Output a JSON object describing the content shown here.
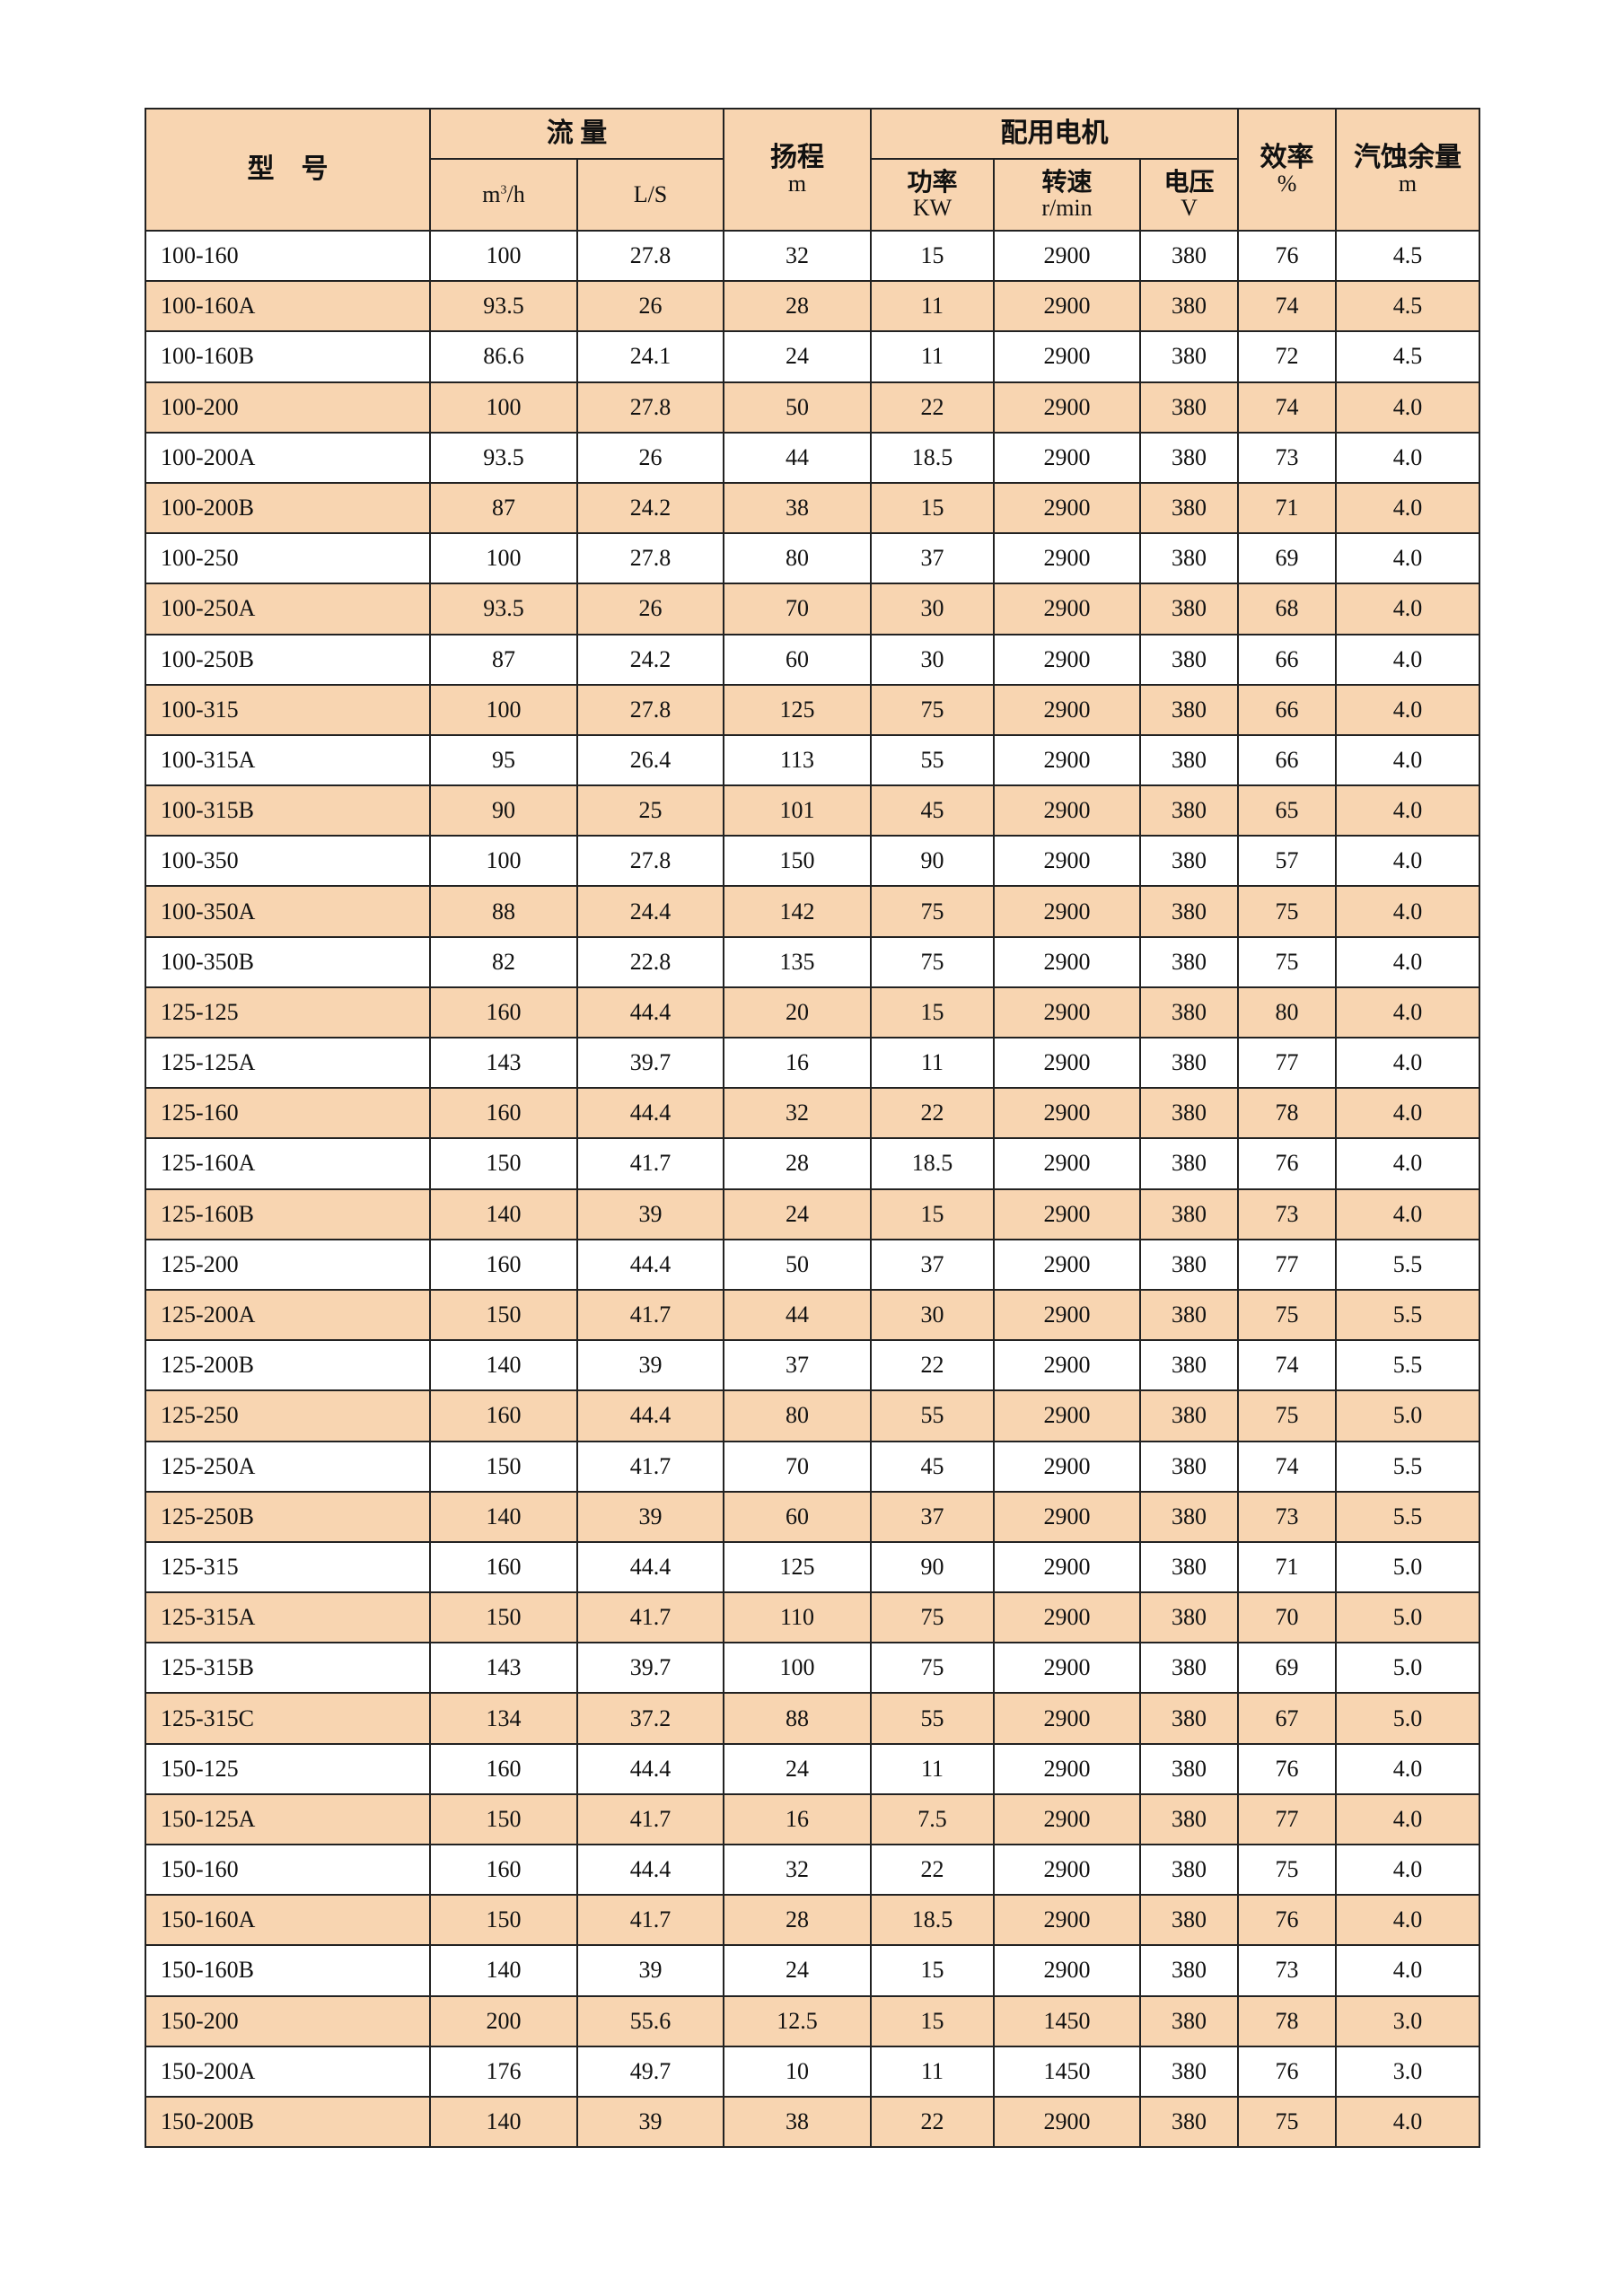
{
  "header": {
    "model": "型　号",
    "flow": "流 量",
    "flow_m3h": "m3/h",
    "flow_ls": "L/S",
    "head": "扬程",
    "head_unit": "m",
    "motor": "配用电机",
    "power": "功率",
    "power_unit": "KW",
    "speed": "转速",
    "speed_unit": "r/min",
    "voltage": "电压",
    "voltage_unit": "V",
    "efficiency": "效率",
    "efficiency_unit": "%",
    "npsh": "汽蚀余量",
    "npsh_unit": "m"
  },
  "row_color": "#f8d5b1",
  "rows": [
    [
      "100-160",
      "100",
      "27.8",
      "32",
      "15",
      "2900",
      "380",
      "76",
      "4.5"
    ],
    [
      "100-160A",
      "93.5",
      "26",
      "28",
      "11",
      "2900",
      "380",
      "74",
      "4.5"
    ],
    [
      "100-160B",
      "86.6",
      "24.1",
      "24",
      "11",
      "2900",
      "380",
      "72",
      "4.5"
    ],
    [
      "100-200",
      "100",
      "27.8",
      "50",
      "22",
      "2900",
      "380",
      "74",
      "4.0"
    ],
    [
      "100-200A",
      "93.5",
      "26",
      "44",
      "18.5",
      "2900",
      "380",
      "73",
      "4.0"
    ],
    [
      "100-200B",
      "87",
      "24.2",
      "38",
      "15",
      "2900",
      "380",
      "71",
      "4.0"
    ],
    [
      "100-250",
      "100",
      "27.8",
      "80",
      "37",
      "2900",
      "380",
      "69",
      "4.0"
    ],
    [
      "100-250A",
      "93.5",
      "26",
      "70",
      "30",
      "2900",
      "380",
      "68",
      "4.0"
    ],
    [
      "100-250B",
      "87",
      "24.2",
      "60",
      "30",
      "2900",
      "380",
      "66",
      "4.0"
    ],
    [
      "100-315",
      "100",
      "27.8",
      "125",
      "75",
      "2900",
      "380",
      "66",
      "4.0"
    ],
    [
      "100-315A",
      "95",
      "26.4",
      "113",
      "55",
      "2900",
      "380",
      "66",
      "4.0"
    ],
    [
      "100-315B",
      "90",
      "25",
      "101",
      "45",
      "2900",
      "380",
      "65",
      "4.0"
    ],
    [
      "100-350",
      "100",
      "27.8",
      "150",
      "90",
      "2900",
      "380",
      "57",
      "4.0"
    ],
    [
      "100-350A",
      "88",
      "24.4",
      "142",
      "75",
      "2900",
      "380",
      "75",
      "4.0"
    ],
    [
      "100-350B",
      "82",
      "22.8",
      "135",
      "75",
      "2900",
      "380",
      "75",
      "4.0"
    ],
    [
      "125-125",
      "160",
      "44.4",
      "20",
      "15",
      "2900",
      "380",
      "80",
      "4.0"
    ],
    [
      "125-125A",
      "143",
      "39.7",
      "16",
      "11",
      "2900",
      "380",
      "77",
      "4.0"
    ],
    [
      "125-160",
      "160",
      "44.4",
      "32",
      "22",
      "2900",
      "380",
      "78",
      "4.0"
    ],
    [
      "125-160A",
      "150",
      "41.7",
      "28",
      "18.5",
      "2900",
      "380",
      "76",
      "4.0"
    ],
    [
      "125-160B",
      "140",
      "39",
      "24",
      "15",
      "2900",
      "380",
      "73",
      "4.0"
    ],
    [
      "125-200",
      "160",
      "44.4",
      "50",
      "37",
      "2900",
      "380",
      "77",
      "5.5"
    ],
    [
      "125-200A",
      "150",
      "41.7",
      "44",
      "30",
      "2900",
      "380",
      "75",
      "5.5"
    ],
    [
      "125-200B",
      "140",
      "39",
      "37",
      "22",
      "2900",
      "380",
      "74",
      "5.5"
    ],
    [
      "125-250",
      "160",
      "44.4",
      "80",
      "55",
      "2900",
      "380",
      "75",
      "5.0"
    ],
    [
      "125-250A",
      "150",
      "41.7",
      "70",
      "45",
      "2900",
      "380",
      "74",
      "5.5"
    ],
    [
      "125-250B",
      "140",
      "39",
      "60",
      "37",
      "2900",
      "380",
      "73",
      "5.5"
    ],
    [
      "125-315",
      "160",
      "44.4",
      "125",
      "90",
      "2900",
      "380",
      "71",
      "5.0"
    ],
    [
      "125-315A",
      "150",
      "41.7",
      "110",
      "75",
      "2900",
      "380",
      "70",
      "5.0"
    ],
    [
      "125-315B",
      "143",
      "39.7",
      "100",
      "75",
      "2900",
      "380",
      "69",
      "5.0"
    ],
    [
      "125-315C",
      "134",
      "37.2",
      "88",
      "55",
      "2900",
      "380",
      "67",
      "5.0"
    ],
    [
      "150-125",
      "160",
      "44.4",
      "24",
      "11",
      "2900",
      "380",
      "76",
      "4.0"
    ],
    [
      "150-125A",
      "150",
      "41.7",
      "16",
      "7.5",
      "2900",
      "380",
      "77",
      "4.0"
    ],
    [
      "150-160",
      "160",
      "44.4",
      "32",
      "22",
      "2900",
      "380",
      "75",
      "4.0"
    ],
    [
      "150-160A",
      "150",
      "41.7",
      "28",
      "18.5",
      "2900",
      "380",
      "76",
      "4.0"
    ],
    [
      "150-160B",
      "140",
      "39",
      "24",
      "15",
      "2900",
      "380",
      "73",
      "4.0"
    ],
    [
      "150-200",
      "200",
      "55.6",
      "12.5",
      "15",
      "1450",
      "380",
      "78",
      "3.0"
    ],
    [
      "150-200A",
      "176",
      "49.7",
      "10",
      "11",
      "1450",
      "380",
      "76",
      "3.0"
    ],
    [
      "150-200B",
      "140",
      "39",
      "38",
      "22",
      "2900",
      "380",
      "75",
      "4.0"
    ]
  ]
}
